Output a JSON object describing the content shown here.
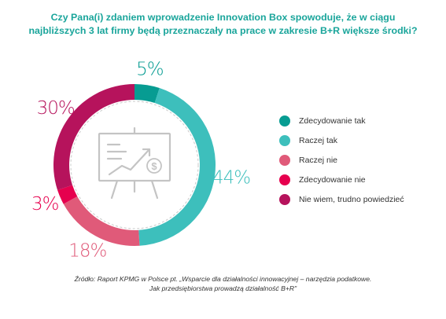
{
  "title": {
    "line1": "Czy Pana(i) zdaniem wprowadzenie Innovation Box spowoduje, że w ciągu",
    "line2": "najbliższych 3 lat firmy będą przeznaczały na prace w zakresie B+R większe środki?"
  },
  "chart_data": {
    "type": "pie",
    "categories": [
      "Zdecydowanie tak",
      "Raczej tak",
      "Raczej nie",
      "Zdecydowanie nie",
      "Nie wiem, trudno powiedzieć"
    ],
    "values": [
      5,
      44,
      18,
      3,
      30
    ],
    "labels": [
      "5%",
      "44%",
      "18%",
      "3%",
      "30%"
    ],
    "colors": [
      "#079c92",
      "#3dbfbc",
      "#e05a79",
      "#e6004e",
      "#b6135c"
    ],
    "donut": true,
    "legend_position": "right"
  },
  "legend": {
    "items": [
      {
        "label": "Zdecydowanie tak",
        "color": "#079c92"
      },
      {
        "label": "Raczej tak",
        "color": "#3dbfbc"
      },
      {
        "label": "Raczej nie",
        "color": "#e05a79"
      },
      {
        "label": "Zdecydowanie nie",
        "color": "#e6004e"
      },
      {
        "label": "Nie wiem, trudno powiedzieć",
        "color": "#b6135c"
      }
    ]
  },
  "center_icon": "presentation-board-dollar-icon",
  "source": {
    "line1": "Źródło: Raport KPMG w Polsce pt. „Wsparcie dla działalności innowacyjnej – narzędzia podatkowe.",
    "line2": "Jak przedsiębiorstwa prowadzą działalność B+R\""
  }
}
